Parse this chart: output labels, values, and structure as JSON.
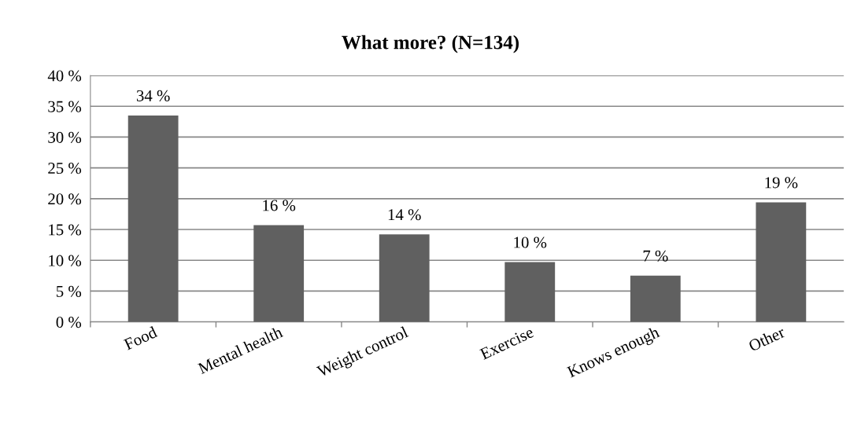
{
  "chart_data": {
    "type": "bar",
    "title": "What more? (N=134)",
    "categories": [
      "Food",
      "Mental health",
      "Weight control",
      "Exercise",
      "Knows enough",
      "Other"
    ],
    "values": [
      33.5,
      15.7,
      14.2,
      9.7,
      7.5,
      19.4
    ],
    "value_labels": [
      "34 %",
      "16 %",
      "14 %",
      "10 %",
      "7 %",
      "19 %"
    ],
    "color": "#606060",
    "ylim": [
      0,
      40
    ],
    "yticks": [
      {
        "value": 0,
        "label": "0 %"
      },
      {
        "value": 5,
        "label": "5 %"
      },
      {
        "value": 10,
        "label": "10 %"
      },
      {
        "value": 15,
        "label": "15 %"
      },
      {
        "value": 20,
        "label": "20 %"
      },
      {
        "value": 25,
        "label": "25 %"
      },
      {
        "value": 30,
        "label": "30 %"
      },
      {
        "value": 35,
        "label": "35 %"
      },
      {
        "value": 40,
        "label": "40 %"
      }
    ],
    "grid": "y"
  }
}
